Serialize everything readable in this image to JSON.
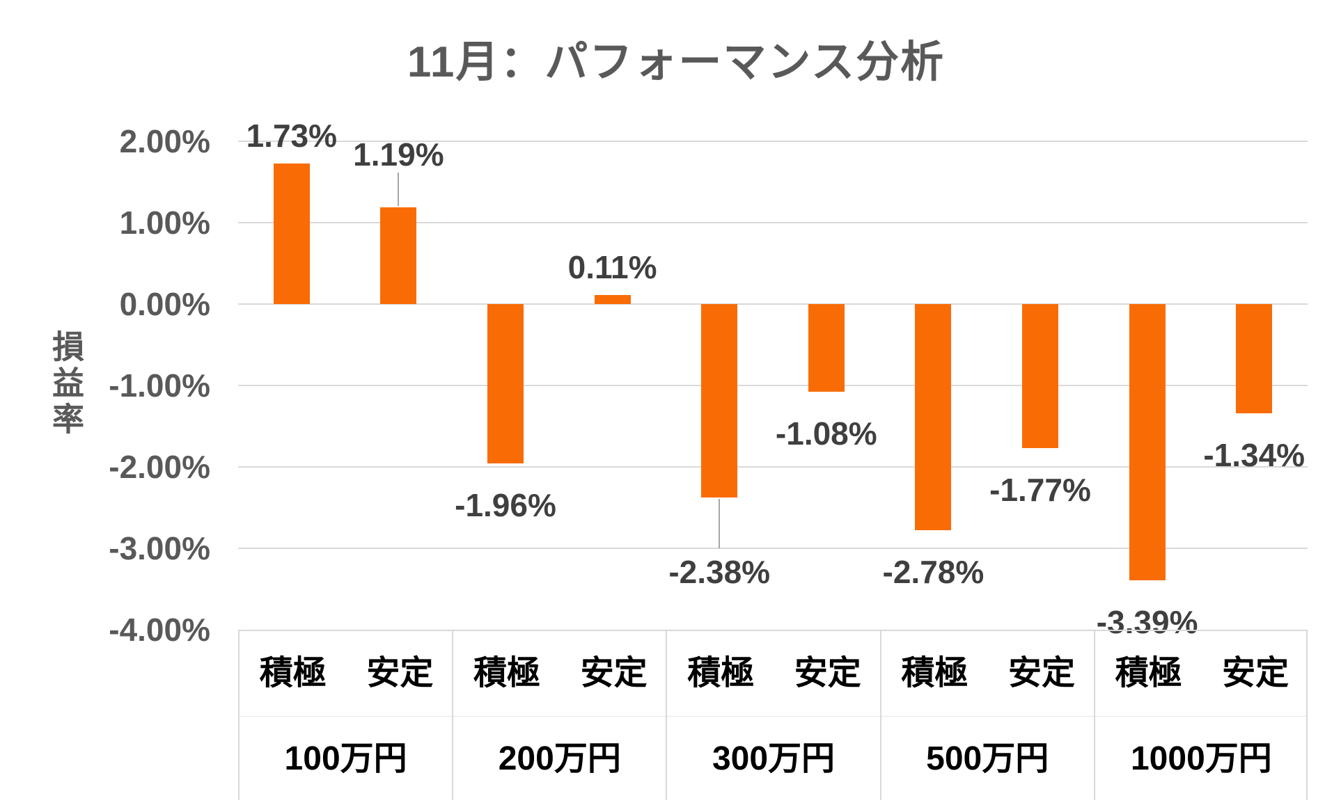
{
  "title": "11月：パフォーマンス分析",
  "y_axis": {
    "label": "損益率",
    "ticks": [
      "2.00%",
      "1.00%",
      "0.00%",
      "-1.00%",
      "-2.00%",
      "-3.00%",
      "-4.00%"
    ],
    "tick_values": [
      2,
      1,
      0,
      -1,
      -2,
      -3,
      -4
    ]
  },
  "chart_data": {
    "type": "bar",
    "title": "11月：パフォーマンス分析",
    "ylabel": "損益率",
    "ylim": [
      -4,
      2
    ],
    "grid": true,
    "legend": "none",
    "bar_color": "#f96c05",
    "categories": [
      "100万円",
      "200万円",
      "300万円",
      "500万円",
      "1000万円"
    ],
    "series_labels": [
      "積極",
      "安定"
    ],
    "series": [
      {
        "name": "積極",
        "values": [
          1.73,
          -1.96,
          -2.38,
          -2.78,
          -3.39
        ],
        "data_labels": [
          "1.73%",
          "-1.96%",
          "-2.38%",
          "-2.78%",
          "-3.39%"
        ]
      },
      {
        "name": "安定",
        "values": [
          1.19,
          0.11,
          -1.08,
          -1.77,
          -1.34
        ],
        "data_labels": [
          "1.19%",
          "0.11%",
          "-1.08%",
          "-1.77%",
          "-1.34%"
        ]
      }
    ]
  },
  "colors": {
    "bar": "#f96c05",
    "gridline": "#d9d9d9",
    "title_text": "#595959",
    "tick_text": "#595959",
    "data_label_text": "#3f3f3f",
    "category_text": "#000000",
    "leader_line": "#a6a6a6",
    "background": "#ffffff"
  }
}
